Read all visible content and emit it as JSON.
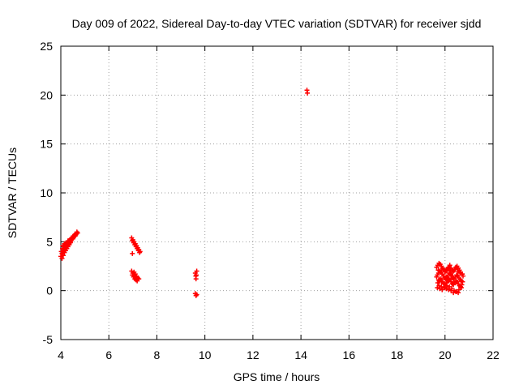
{
  "chart_data": {
    "type": "scatter",
    "title": "Day 009 of 2022, Sidereal Day-to-day VTEC variation (SDTVAR) for receiver sjdd",
    "xlabel": "GPS time / hours",
    "ylabel": "SDTVAR / TECUs",
    "xlim": [
      4,
      22
    ],
    "ylim": [
      -5,
      25
    ],
    "xticks": [
      4,
      6,
      8,
      10,
      12,
      14,
      16,
      18,
      20,
      22
    ],
    "yticks": [
      -5,
      0,
      5,
      10,
      15,
      20,
      25
    ],
    "xtick_labels": [
      "4",
      "6",
      "8",
      "10",
      "12",
      "14",
      "16",
      "18",
      "20",
      "22"
    ],
    "ytick_labels": [
      "-5",
      "0",
      "5",
      "10",
      "15",
      "20",
      "25"
    ],
    "grid": true,
    "marker": "+",
    "series": [
      {
        "name": "SDTVAR",
        "color": "#ff0000",
        "x": [
          4.0,
          4.05,
          4.1,
          4.15,
          4.2,
          4.25,
          4.3,
          4.35,
          4.4,
          4.45,
          4.5,
          4.55,
          4.6,
          4.65,
          4.7,
          4.02,
          4.07,
          4.12,
          4.17,
          4.22,
          4.27,
          4.32,
          4.37,
          4.42,
          4.47,
          4.52,
          4.57,
          4.62,
          4.67,
          4.05,
          4.1,
          4.15,
          4.2,
          4.25,
          4.3,
          4.35,
          4.4,
          4.08,
          4.15,
          4.22,
          4.3,
          4.05,
          4.12,
          4.2,
          4.28,
          4.35,
          4.42,
          6.95,
          7.0,
          7.05,
          7.1,
          7.15,
          7.2,
          7.25,
          7.3,
          6.98,
          7.03,
          7.08,
          7.13,
          7.18,
          7.23,
          7.28,
          6.98,
          6.95,
          7.0,
          7.05,
          7.1,
          7.15,
          7.2,
          7.25,
          6.98,
          7.03,
          7.08,
          7.13,
          7.18,
          7.05,
          7.1,
          7.15,
          7.2,
          9.6,
          9.62,
          9.63,
          9.64,
          9.66,
          9.6,
          9.63,
          9.66,
          14.25,
          14.27,
          19.65,
          19.7,
          19.75,
          19.8,
          19.85,
          19.9,
          19.95,
          20.0,
          20.05,
          20.1,
          20.15,
          20.2,
          20.25,
          20.3,
          20.35,
          20.4,
          20.45,
          20.5,
          20.55,
          20.6,
          20.65,
          20.7,
          20.75,
          19.68,
          19.73,
          19.78,
          19.83,
          19.88,
          19.93,
          19.98,
          20.03,
          20.08,
          20.13,
          20.18,
          20.23,
          20.28,
          20.33,
          20.38,
          20.43,
          20.48,
          20.53,
          20.58,
          20.63,
          20.68,
          20.73,
          19.7,
          19.75,
          19.8,
          19.85,
          19.9,
          19.95,
          20.0,
          20.05,
          20.1,
          20.15,
          20.2,
          20.25,
          20.3,
          20.35,
          20.4,
          20.45,
          20.5,
          20.55,
          20.6,
          20.65,
          20.7,
          19.68,
          19.78,
          19.88,
          19.98,
          20.08,
          20.18,
          20.28,
          20.38,
          20.48,
          20.58,
          20.68,
          19.72,
          19.82,
          19.92,
          20.02,
          20.12,
          20.22,
          20.32,
          20.42,
          20.52,
          20.62,
          20.72,
          19.65,
          19.75,
          19.85,
          19.95,
          20.05,
          20.15,
          20.25,
          20.35,
          20.45,
          20.55,
          20.65,
          19.75,
          19.85,
          19.95,
          20.05,
          20.15,
          20.25,
          20.35,
          20.45,
          20.55
        ],
        "y": [
          3.5,
          3.8,
          4.0,
          4.2,
          4.4,
          4.6,
          4.7,
          4.8,
          5.0,
          5.2,
          5.3,
          5.5,
          5.6,
          5.8,
          5.9,
          4.0,
          4.3,
          4.5,
          4.6,
          4.8,
          4.9,
          5.0,
          5.2,
          5.3,
          5.4,
          5.6,
          5.7,
          5.8,
          6.0,
          3.3,
          3.6,
          3.9,
          4.1,
          4.3,
          4.5,
          4.7,
          4.9,
          4.6,
          4.8,
          4.9,
          5.1,
          3.8,
          4.1,
          4.4,
          4.7,
          5.0,
          5.3,
          5.4,
          5.2,
          5.0,
          4.8,
          4.6,
          4.4,
          4.2,
          4.0,
          5.1,
          4.9,
          4.7,
          4.5,
          4.3,
          4.1,
          3.9,
          3.8,
          2.0,
          1.8,
          1.6,
          1.5,
          1.4,
          1.3,
          1.2,
          1.6,
          1.4,
          1.2,
          1.1,
          1.0,
          1.9,
          1.7,
          1.5,
          1.3,
          1.8,
          1.5,
          1.2,
          1.6,
          2.0,
          -0.3,
          -0.5,
          -0.4,
          20.5,
          20.2,
          2.4,
          2.6,
          2.8,
          2.7,
          2.5,
          2.3,
          2.1,
          1.9,
          2.0,
          2.2,
          2.4,
          2.6,
          2.3,
          2.1,
          2.0,
          2.2,
          2.4,
          2.5,
          2.3,
          2.1,
          1.9,
          1.7,
          1.5,
          1.6,
          1.8,
          2.0,
          1.9,
          1.7,
          1.5,
          1.3,
          1.2,
          1.4,
          1.6,
          1.8,
          1.7,
          1.5,
          1.3,
          1.2,
          1.4,
          1.6,
          1.5,
          1.3,
          1.1,
          1.0,
          0.9,
          0.8,
          1.0,
          1.2,
          1.1,
          0.9,
          0.7,
          0.6,
          0.8,
          1.0,
          1.2,
          1.1,
          0.9,
          0.7,
          0.6,
          0.8,
          1.0,
          0.9,
          0.7,
          0.5,
          0.4,
          0.6,
          0.3,
          0.2,
          0.1,
          0.3,
          0.5,
          0.4,
          0.2,
          0.0,
          -0.1,
          0.1,
          0.3,
          2.1,
          1.9,
          2.2,
          2.0,
          2.3,
          2.1,
          1.9,
          2.2,
          2.0,
          1.8,
          1.7,
          1.4,
          1.1,
          0.9,
          1.5,
          1.3,
          1.0,
          1.6,
          1.2,
          0.9,
          0.7,
          1.1,
          0.5,
          0.4,
          0.3,
          0.2,
          0.1,
          0.0,
          -0.2,
          -0.1,
          -0.2
        ]
      }
    ]
  }
}
